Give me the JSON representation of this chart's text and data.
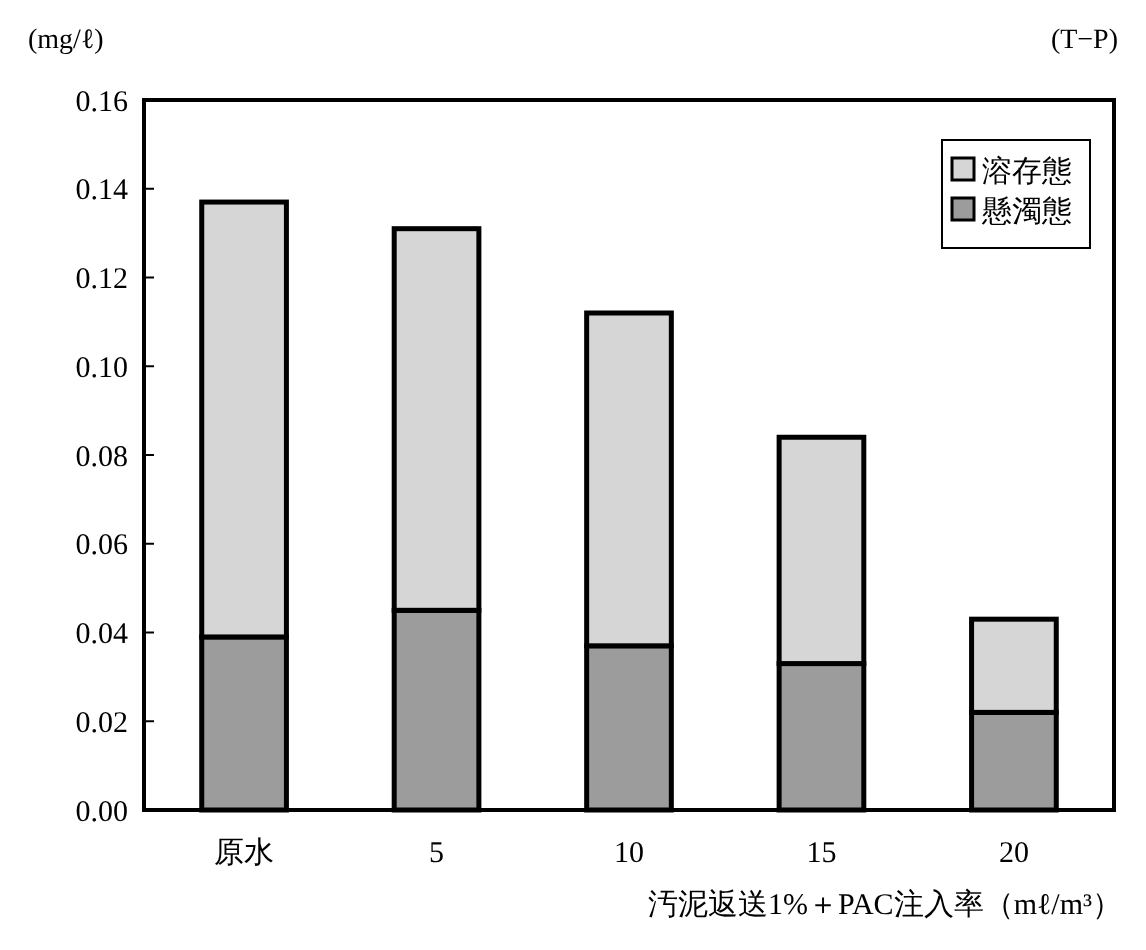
{
  "chart_data": {
    "type": "bar",
    "stacked": true,
    "ylabel": "(mg/ℓ)",
    "xlabel": "汚泥返送1%＋PAC注入率（mℓ/m³）",
    "annotations": [
      "(T−P)"
    ],
    "categories": [
      "原水",
      "5",
      "10",
      "15",
      "20"
    ],
    "series": [
      {
        "name": "懸濁態",
        "color": "#9c9c9c",
        "values": [
          0.039,
          0.045,
          0.037,
          0.033,
          0.022
        ]
      },
      {
        "name": "溶存態",
        "color": "#d6d6d6",
        "values": [
          0.098,
          0.086,
          0.075,
          0.051,
          0.021
        ]
      }
    ],
    "ylim": [
      0,
      0.16
    ],
    "yticks": [
      {
        "value": 0,
        "label": "0.00"
      },
      {
        "value": 0.02,
        "label": "0.02"
      },
      {
        "value": 0.04,
        "label": "0.04"
      },
      {
        "value": 0.06,
        "label": "0.06"
      },
      {
        "value": 0.08,
        "label": "0.08"
      },
      {
        "value": 0.1,
        "label": "0.10"
      },
      {
        "value": 0.12,
        "label": "0.12"
      },
      {
        "value": 0.14,
        "label": "0.14"
      },
      {
        "value": 0.16,
        "label": "0.16"
      }
    ],
    "legend": "top right",
    "grid": false
  }
}
